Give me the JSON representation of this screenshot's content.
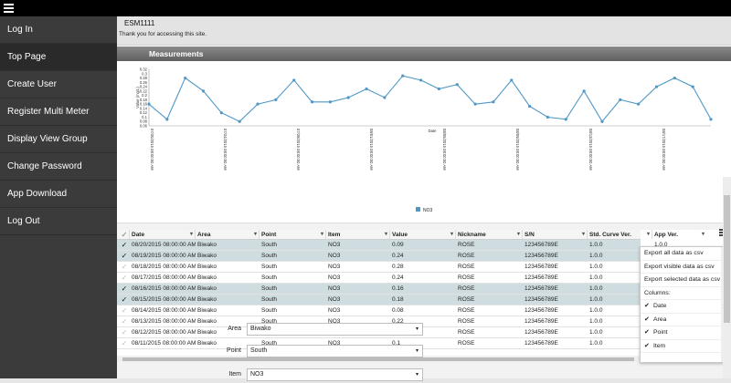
{
  "sidebar": {
    "items": [
      {
        "label": "Log In"
      },
      {
        "label": "Top Page"
      },
      {
        "label": "Create User"
      },
      {
        "label": "Register Multi Meter"
      },
      {
        "label": "Display View Group"
      },
      {
        "label": "Change Password"
      },
      {
        "label": "App Download"
      },
      {
        "label": "Log Out"
      }
    ],
    "active_index": 1
  },
  "header": {
    "site_id": "ESM1111",
    "welcome": "Thank you for accessing this site."
  },
  "panel": {
    "title": "Measurements"
  },
  "chart_data": {
    "type": "line",
    "xlabel": "Date",
    "ylabel": "Value (mg/L)",
    "ylim": [
      0.06,
      0.32
    ],
    "yticks": [
      "0.32",
      "0.3",
      "0.28",
      "0.26",
      "0.24",
      "0.22",
      "0.2",
      "0.18",
      "0.16",
      "0.14",
      "0.12",
      "0.1",
      "0.08",
      "0.06"
    ],
    "xticks": [
      "07/20/2015 08:00:00 AM",
      "07/24/2015 08:00:00 AM",
      "07/28/2015 08:00:00 AM",
      "08/01/2015 08:00:00 AM",
      "08/05/2015 08:00:00 AM",
      "08/09/2015 08:00:00 AM",
      "08/13/2015 08:00:00 AM",
      "08/17/2015 08:00:00 AM"
    ],
    "series": [
      {
        "name": "NO3",
        "color": "#4f98c6",
        "values": [
          0.16,
          0.09,
          0.28,
          0.22,
          0.12,
          0.08,
          0.16,
          0.18,
          0.27,
          0.17,
          0.17,
          0.19,
          0.23,
          0.19,
          0.29,
          0.27,
          0.23,
          0.25,
          0.16,
          0.17,
          0.27,
          0.15,
          0.1,
          0.09,
          0.22,
          0.08,
          0.18,
          0.16,
          0.24,
          0.28,
          0.24,
          0.09
        ]
      }
    ],
    "legend_position": "bottom"
  },
  "grid": {
    "columns": [
      "Date",
      "Area",
      "Point",
      "Item",
      "Value",
      "Nickname",
      "S/N",
      "Std. Curve Ver.",
      "App Ver."
    ],
    "rows": [
      {
        "selected": true,
        "cells": [
          "08/20/2015 08:00:00 AM",
          "Biwako",
          "South",
          "NO3",
          "0.09",
          "ROSE",
          "123456789E",
          "1.0.0",
          "1.0.0"
        ]
      },
      {
        "selected": true,
        "cells": [
          "08/19/2015 08:00:00 AM",
          "Biwako",
          "South",
          "NO3",
          "0.24",
          "ROSE",
          "123456789E",
          "1.0.0",
          "1.0.0"
        ]
      },
      {
        "selected": false,
        "cells": [
          "08/18/2015 08:00:00 AM",
          "Biwako",
          "South",
          "NO3",
          "0.28",
          "ROSE",
          "123456789E",
          "1.0.0",
          "1.0.0"
        ]
      },
      {
        "selected": false,
        "cells": [
          "08/17/2015 08:00:00 AM",
          "Biwako",
          "South",
          "NO3",
          "0.24",
          "ROSE",
          "123456789E",
          "1.0.0",
          "1.0.0"
        ]
      },
      {
        "selected": true,
        "cells": [
          "08/16/2015 08:00:00 AM",
          "Biwako",
          "South",
          "NO3",
          "0.16",
          "ROSE",
          "123456789E",
          "1.0.0",
          "1.0.0"
        ]
      },
      {
        "selected": true,
        "cells": [
          "08/15/2015 08:00:00 AM",
          "Biwako",
          "South",
          "NO3",
          "0.18",
          "ROSE",
          "123456789E",
          "1.0.0",
          "1.0.0"
        ]
      },
      {
        "selected": false,
        "cells": [
          "08/14/2015 08:00:00 AM",
          "Biwako",
          "South",
          "NO3",
          "0.08",
          "ROSE",
          "123456789E",
          "1.0.0",
          "1.0.0"
        ]
      },
      {
        "selected": false,
        "cells": [
          "08/13/2015 08:00:00 AM",
          "Biwako",
          "South",
          "NO3",
          "0.22",
          "ROSE",
          "123456789E",
          "1.0.0",
          "1.0.0"
        ]
      },
      {
        "selected": false,
        "cells": [
          "08/12/2015 08:00:00 AM",
          "Biwako",
          "South",
          "NO3",
          "0.09",
          "ROSE",
          "123456789E",
          "1.0.0",
          "1.0.0"
        ]
      },
      {
        "selected": false,
        "cells": [
          "08/11/2015 08:00:00 AM",
          "Biwako",
          "South",
          "NO3",
          "0.1",
          "ROSE",
          "123456789E",
          "1.0.0",
          "1.0.0"
        ]
      }
    ],
    "menu": {
      "export_all": "Export all data as csv",
      "export_visible": "Export visible data as csv",
      "export_selected": "Export selected data as csv",
      "columns_label": "Columns:",
      "column_toggles": [
        "Date",
        "Area",
        "Point",
        "Item"
      ]
    }
  },
  "filters": {
    "area": {
      "label": "Area",
      "value": "Biwako"
    },
    "point": {
      "label": "Point",
      "value": "South"
    },
    "item": {
      "label": "Item",
      "value": "NO3"
    }
  }
}
